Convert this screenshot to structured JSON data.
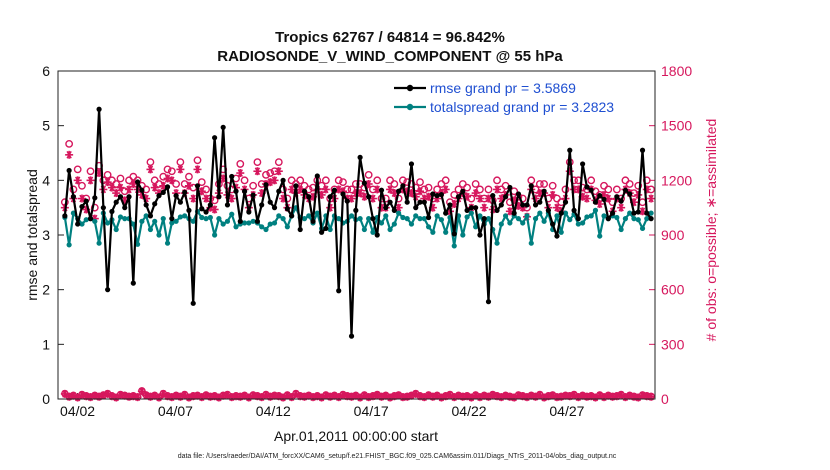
{
  "chart_data": {
    "type": "line",
    "title_line1": "Tropics 62767 / 64814 = 96.842%",
    "title_line2": "RADIOSONDE_V_WIND_COMPONENT @ 55 hPa",
    "xlabel": "Apr.01,2011 00:00:00 start",
    "ylabel_left": "rmse and totalspread",
    "ylabel_right": "# of obs: o=possible; ∗=assimilated",
    "ylim_left": [
      0,
      6
    ],
    "ylim_right": [
      0,
      1800
    ],
    "xlim": [
      1.0,
      31.5
    ],
    "left_ticks": [
      "0",
      "1",
      "2",
      "3",
      "4",
      "5",
      "6"
    ],
    "right_ticks": [
      "0",
      "300",
      "600",
      "900",
      "1200",
      "1500",
      "1800"
    ],
    "x_ticks": [
      {
        "pos": 2,
        "label": "04/02"
      },
      {
        "pos": 7,
        "label": "04/07"
      },
      {
        "pos": 12,
        "label": "04/12"
      },
      {
        "pos": 17,
        "label": "04/17"
      },
      {
        "pos": 22,
        "label": "04/22"
      },
      {
        "pos": 27,
        "label": "04/27"
      }
    ],
    "footnote": "data file: /Users/raeder/DAI/ATM_forcXX/CAM6_setup/f.e21.FHIST_BGC.f09_025.CAM6assim.011/Diags_NTrS_2011-04/obs_diag_output.nc",
    "series": [
      {
        "name": "rmse grand pr = 3.5869",
        "color": "#000000",
        "marker": "dot",
        "values": [
          3.35,
          4.18,
          3.7,
          3.2,
          3.52,
          3.62,
          3.3,
          3.68,
          5.3,
          3.5,
          2.0,
          3.43,
          3.6,
          3.7,
          3.5,
          3.7,
          2.12,
          3.97,
          3.82,
          3.55,
          3.35,
          3.57,
          3.72,
          3.78,
          3.88,
          3.3,
          3.72,
          3.6,
          3.78,
          3.45,
          1.75,
          3.9,
          3.48,
          3.42,
          3.55,
          4.78,
          3.7,
          4.97,
          3.55,
          4.07,
          3.8,
          3.25,
          3.8,
          3.42,
          3.73,
          3.25,
          3.55,
          3.92,
          3.6,
          3.5,
          3.8,
          4.0,
          3.48,
          3.35,
          3.9,
          3.1,
          3.8,
          3.7,
          3.25,
          4.08,
          3.05,
          3.12,
          3.7,
          3.82,
          1.98,
          3.75,
          3.62,
          1.15,
          3.45,
          4.42,
          3.95,
          3.7,
          3.3,
          3.0,
          3.82,
          3.5,
          3.6,
          3.45,
          3.8,
          3.9,
          3.6,
          4.3,
          3.5,
          3.6,
          3.6,
          3.32,
          3.75,
          3.72,
          3.74,
          3.4,
          3.55,
          3.02,
          3.7,
          3.8,
          3.45,
          3.5,
          3.5,
          3.0,
          3.3,
          1.78,
          3.72,
          3.45,
          3.55,
          3.7,
          3.87,
          3.4,
          3.75,
          3.55,
          3.55,
          3.9,
          3.55,
          3.6,
          3.8,
          3.45,
          3.2,
          2.98,
          3.4,
          3.6,
          4.55,
          3.45,
          3.3,
          4.3,
          3.88,
          3.82,
          3.6,
          3.72,
          3.65,
          3.3,
          3.4,
          3.7,
          3.62,
          3.82,
          3.75,
          3.4,
          3.42,
          4.55,
          3.4,
          3.3
        ]
      },
      {
        "name": "totalspread grand pr = 3.2823",
        "color": "#008080",
        "marker": "dot",
        "values": [
          3.32,
          2.82,
          3.4,
          3.3,
          3.2,
          3.28,
          3.3,
          3.25,
          2.85,
          3.4,
          3.22,
          3.28,
          3.1,
          3.33,
          3.3,
          3.3,
          3.2,
          2.83,
          3.25,
          3.35,
          3.1,
          3.25,
          3.0,
          3.3,
          2.85,
          3.22,
          3.25,
          3.33,
          3.35,
          3.3,
          3.25,
          3.43,
          3.32,
          3.3,
          3.32,
          3.0,
          3.3,
          3.2,
          3.25,
          3.38,
          3.15,
          3.2,
          3.22,
          3.22,
          3.25,
          3.22,
          3.15,
          3.1,
          3.2,
          3.22,
          3.35,
          3.3,
          3.15,
          3.35,
          3.5,
          3.32,
          3.3,
          3.35,
          3.22,
          3.4,
          3.12,
          3.35,
          3.1,
          3.35,
          3.3,
          3.22,
          3.25,
          3.35,
          3.28,
          3.3,
          3.1,
          3.3,
          3.05,
          3.32,
          3.22,
          3.35,
          3.1,
          3.2,
          3.4,
          3.32,
          3.3,
          3.2,
          3.35,
          3.3,
          3.3,
          3.15,
          3.05,
          3.35,
          3.28,
          3.05,
          3.32,
          2.8,
          3.35,
          3.0,
          3.33,
          3.4,
          3.15,
          3.35,
          3.2,
          3.3,
          3.1,
          2.85,
          3.2,
          3.35,
          3.22,
          3.35,
          3.3,
          3.22,
          3.35,
          2.85,
          3.3,
          3.4,
          3.25,
          3.4,
          3.1,
          3.35,
          3.05,
          3.4,
          3.28,
          3.38,
          3.2,
          3.22,
          3.33,
          3.35,
          3.45,
          2.98,
          3.35,
          3.3,
          3.35,
          3.32,
          3.1,
          3.3,
          3.4,
          3.3,
          3.28,
          3.12,
          3.3,
          3.4
        ]
      }
    ],
    "obs_possible": [
      1080,
      1400,
      1150,
      1260,
      1170,
      1100,
      1250,
      1050,
      1280,
      1200,
      1230,
      1200,
      1180,
      1210,
      1140,
      1200,
      1220,
      1200,
      1170,
      1150,
      1300,
      1200,
      1180,
      1220,
      1260,
      1250,
      1180,
      1300,
      1180,
      1220,
      1160,
      1310,
      1190,
      1150,
      1100,
      1090,
      1180,
      1260,
      1170,
      1150,
      1210,
      1290,
      1200,
      1100,
      1170,
      1300,
      1180,
      1230,
      1240,
      1250,
      1300,
      1150,
      1100,
      1200,
      1180,
      1200,
      1170,
      1150,
      1160,
      1200,
      1170,
      1200,
      1100,
      1150,
      1200,
      1190,
      1150,
      1150,
      1180,
      1180,
      1160,
      1230,
      1150,
      1200,
      1100,
      1100,
      1200,
      1180,
      1100,
      1200,
      1190,
      1180,
      1160,
      1190,
      1150,
      1160,
      1100,
      1150,
      1180,
      1200,
      1080,
      1120,
      1150,
      1180,
      1160,
      1100,
      1180,
      1150,
      1100,
      1150,
      1090,
      1200,
      1150,
      1170,
      1080,
      1140,
      1110,
      1100,
      1050,
      1200,
      1150,
      1180,
      1180,
      1100,
      1170,
      1100,
      1080,
      1150,
      1300,
      1200,
      1200,
      1160,
      1150,
      1200,
      1140,
      1120,
      1170,
      1150,
      1080,
      1150,
      1100,
      1200,
      1180,
      1130,
      1170,
      1080,
      1200,
      1150
    ],
    "obs_assimilated": [
      1050,
      1340,
      1100,
      1200,
      1100,
      1040,
      1200,
      990,
      1240,
      1150,
      1190,
      1160,
      1130,
      1160,
      1090,
      1150,
      1180,
      1150,
      1120,
      1100,
      1260,
      1160,
      1130,
      1170,
      1210,
      1200,
      1130,
      1260,
      1130,
      1170,
      1100,
      1260,
      1140,
      1100,
      1050,
      1040,
      1130,
      1210,
      1120,
      1100,
      1160,
      1240,
      1150,
      1050,
      1120,
      1250,
      1130,
      1180,
      1190,
      1200,
      1250,
      1100,
      1050,
      1150,
      1130,
      1150,
      1120,
      1100,
      1110,
      1150,
      1120,
      1150,
      1050,
      1100,
      1150,
      1140,
      1100,
      1100,
      1130,
      1130,
      1110,
      1180,
      1100,
      1150,
      1050,
      1050,
      1150,
      1130,
      1050,
      1150,
      1140,
      1130,
      1110,
      1140,
      1100,
      1110,
      1050,
      1100,
      1130,
      1150,
      1030,
      1070,
      1100,
      1130,
      1110,
      1050,
      1130,
      1100,
      1050,
      1100,
      1040,
      1150,
      1100,
      1120,
      1030,
      1090,
      1060,
      1050,
      1000,
      1150,
      1100,
      1130,
      1130,
      1050,
      1120,
      1050,
      1030,
      1100,
      1250,
      1150,
      1150,
      1110,
      1100,
      1150,
      1090,
      1070,
      1120,
      1100,
      1030,
      1100,
      1050,
      1150,
      1130,
      1080,
      1120,
      1030,
      1150,
      1100
    ],
    "obs_bottom_possible": [
      30,
      15,
      20,
      10,
      25,
      18,
      12,
      20,
      15,
      22,
      30,
      18,
      10,
      25,
      20,
      15,
      18,
      12,
      45,
      22,
      15,
      20,
      10,
      30,
      18,
      12,
      20,
      15,
      25,
      10,
      18,
      20,
      12,
      22,
      15,
      18,
      10,
      20,
      25,
      12,
      18,
      15,
      20,
      10,
      22,
      18,
      12,
      25,
      15,
      20,
      18,
      10,
      22,
      12,
      30,
      18,
      15,
      20,
      12,
      18,
      10,
      22,
      15,
      20,
      12,
      25,
      18,
      15,
      20,
      10,
      22,
      12,
      18,
      25,
      15,
      20,
      10,
      18,
      22,
      12,
      15,
      20,
      30,
      18,
      12,
      22,
      15,
      20,
      10,
      18,
      25,
      12,
      20,
      15,
      18,
      10,
      22,
      12,
      20,
      15,
      25,
      18,
      12,
      20,
      15,
      10,
      22,
      18,
      12,
      20,
      15,
      25,
      10,
      18,
      22,
      12,
      15,
      20,
      18,
      25,
      12,
      20,
      15,
      18,
      10,
      22,
      12,
      20,
      15,
      18,
      25,
      12,
      20,
      15,
      10,
      22,
      18,
      15
    ],
    "obs_bottom_assimilated": [
      28,
      12,
      18,
      8,
      22,
      15,
      10,
      18,
      12,
      20,
      28,
      15,
      8,
      22,
      18,
      12,
      15,
      10,
      42,
      20,
      12,
      18,
      8,
      28,
      15,
      10,
      18,
      12,
      22,
      8,
      15,
      18,
      10,
      20,
      12,
      15,
      8,
      18,
      22,
      10,
      15,
      12,
      18,
      8,
      20,
      15,
      10,
      22,
      12,
      18,
      15,
      8,
      20,
      10,
      28,
      15,
      12,
      18,
      10,
      15,
      8,
      20,
      12,
      18,
      10,
      22,
      15,
      12,
      18,
      8,
      20,
      10,
      15,
      22,
      12,
      18,
      8,
      15,
      20,
      10,
      12,
      18,
      28,
      15,
      10,
      20,
      12,
      18,
      8,
      15,
      22,
      10,
      18,
      12,
      15,
      8,
      20,
      10,
      18,
      12,
      22,
      15,
      10,
      18,
      12,
      8,
      20,
      15,
      10,
      18,
      12,
      22,
      8,
      15,
      20,
      10,
      12,
      18,
      15,
      22,
      10,
      18,
      12,
      15,
      8,
      20,
      10,
      18,
      12,
      15,
      22,
      10,
      18,
      12,
      8,
      20,
      15,
      12
    ],
    "obs_color": "#d6175d",
    "axis_color": "#222222"
  }
}
